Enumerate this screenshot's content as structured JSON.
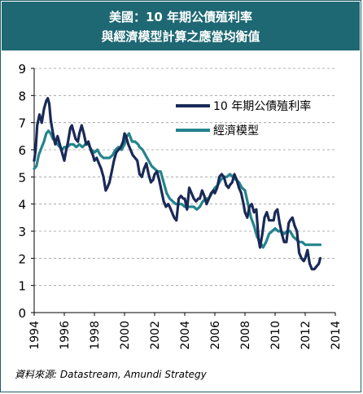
{
  "header": {
    "title_line1": "美國：10 年期公債殖利率",
    "title_line2": "與經濟模型計算之應當均衡值"
  },
  "source": "資料來源: Datastream, Amundi Strategy",
  "colors": {
    "banner": "#1e6873",
    "yield_series": "#1a2a57",
    "model_series": "#24838c",
    "grid": "#9a9a9a"
  },
  "chart_data": {
    "type": "line",
    "xlim": [
      1994,
      2014
    ],
    "ylim": [
      0,
      9
    ],
    "x_ticks": [
      "1994",
      "1996",
      "1998",
      "2000",
      "2002",
      "2004",
      "2006",
      "2008",
      "2010",
      "2012",
      "2014"
    ],
    "y_ticks": [
      "0",
      "1",
      "2",
      "3",
      "4",
      "5",
      "6",
      "7",
      "8",
      "9"
    ],
    "grid": "horizontal dashed",
    "legend_position": "top-right",
    "series": [
      {
        "name": "10 年期公債殖利率",
        "color": "#1a2a57",
        "x": [
          1994.0,
          1994.1,
          1994.2,
          1994.35,
          1994.5,
          1994.65,
          1994.8,
          1994.9,
          1995.0,
          1995.1,
          1995.25,
          1995.4,
          1995.55,
          1995.7,
          1995.85,
          1996.0,
          1996.1,
          1996.25,
          1996.4,
          1996.5,
          1996.6,
          1996.75,
          1996.9,
          1997.0,
          1997.15,
          1997.3,
          1997.45,
          1997.6,
          1997.75,
          1997.9,
          1998.0,
          1998.15,
          1998.3,
          1998.45,
          1998.6,
          1998.75,
          1998.85,
          1999.0,
          1999.15,
          1999.3,
          1999.45,
          1999.6,
          1999.75,
          1999.9,
          2000.0,
          2000.1,
          2000.25,
          2000.4,
          2000.55,
          2000.7,
          2000.85,
          2001.0,
          2001.15,
          2001.3,
          2001.45,
          2001.6,
          2001.75,
          2001.9,
          2002.0,
          2002.15,
          2002.3,
          2002.45,
          2002.6,
          2002.75,
          2002.9,
          2003.0,
          2003.15,
          2003.3,
          2003.45,
          2003.6,
          2003.75,
          2003.9,
          2004.0,
          2004.15,
          2004.3,
          2004.45,
          2004.6,
          2004.75,
          2004.9,
          2005.0,
          2005.15,
          2005.3,
          2005.45,
          2005.6,
          2005.75,
          2005.9,
          2006.0,
          2006.15,
          2006.3,
          2006.45,
          2006.6,
          2006.75,
          2006.9,
          2007.0,
          2007.15,
          2007.3,
          2007.45,
          2007.6,
          2007.75,
          2007.9,
          2008.0,
          2008.15,
          2008.3,
          2008.45,
          2008.6,
          2008.75,
          2008.9,
          2009.0,
          2009.15,
          2009.3,
          2009.45,
          2009.6,
          2009.75,
          2009.9,
          2010.0,
          2010.15,
          2010.3,
          2010.45,
          2010.6,
          2010.75,
          2010.9,
          2011.0,
          2011.15,
          2011.3,
          2011.45,
          2011.6,
          2011.75,
          2011.9,
          2012.0,
          2012.15,
          2012.3,
          2012.45,
          2012.6,
          2012.75,
          2012.9,
          2013.0
        ],
        "values": [
          5.6,
          6.0,
          6.9,
          7.3,
          7.0,
          7.5,
          7.8,
          7.9,
          7.7,
          7.1,
          6.6,
          6.2,
          6.5,
          6.2,
          5.9,
          5.6,
          5.9,
          6.3,
          6.8,
          6.9,
          6.7,
          6.4,
          6.3,
          6.6,
          6.9,
          6.6,
          6.2,
          6.3,
          6.0,
          5.8,
          5.6,
          5.7,
          5.5,
          5.3,
          5.0,
          4.5,
          4.6,
          4.8,
          5.2,
          5.6,
          5.9,
          6.0,
          6.1,
          6.3,
          6.6,
          6.5,
          6.2,
          6.0,
          5.8,
          5.7,
          5.6,
          5.1,
          5.0,
          5.3,
          5.5,
          5.1,
          4.8,
          4.9,
          5.1,
          5.2,
          4.9,
          4.5,
          4.1,
          3.9,
          4.0,
          3.9,
          3.7,
          3.5,
          3.4,
          4.2,
          4.3,
          4.2,
          4.2,
          3.8,
          4.6,
          4.4,
          4.2,
          4.1,
          4.2,
          4.2,
          4.5,
          4.3,
          4.0,
          4.2,
          4.4,
          4.5,
          4.4,
          4.6,
          5.0,
          5.1,
          5.0,
          4.7,
          4.6,
          4.7,
          4.8,
          5.1,
          4.9,
          4.6,
          4.4,
          4.0,
          3.7,
          3.5,
          3.9,
          4.0,
          3.7,
          3.8,
          2.7,
          2.4,
          2.9,
          3.5,
          3.7,
          3.4,
          3.4,
          3.4,
          3.7,
          3.8,
          3.3,
          2.9,
          2.6,
          2.6,
          3.3,
          3.4,
          3.5,
          3.2,
          3.0,
          2.2,
          2.0,
          1.9,
          2.0,
          2.3,
          1.8,
          1.6,
          1.6,
          1.7,
          1.8,
          2.0
        ]
      },
      {
        "name": "經濟模型",
        "color": "#24838c",
        "x": [
          1994.0,
          1994.15,
          1994.3,
          1994.5,
          1994.65,
          1994.8,
          1994.95,
          1995.1,
          1995.25,
          1995.4,
          1995.55,
          1995.7,
          1995.85,
          1996.0,
          1996.2,
          1996.4,
          1996.6,
          1996.8,
          1997.0,
          1997.2,
          1997.4,
          1997.6,
          1997.8,
          1998.0,
          1998.2,
          1998.4,
          1998.6,
          1998.8,
          1999.0,
          1999.2,
          1999.4,
          1999.6,
          1999.8,
          2000.0,
          2000.15,
          2000.3,
          2000.5,
          2000.7,
          2000.9,
          2001.0,
          2001.2,
          2001.4,
          2001.6,
          2001.8,
          2002.0,
          2002.2,
          2002.4,
          2002.6,
          2002.8,
          2003.0,
          2003.2,
          2003.4,
          2003.6,
          2003.8,
          2004.0,
          2004.2,
          2004.4,
          2004.6,
          2004.8,
          2005.0,
          2005.2,
          2005.4,
          2005.6,
          2005.8,
          2006.0,
          2006.2,
          2006.4,
          2006.6,
          2006.8,
          2007.0,
          2007.2,
          2007.4,
          2007.6,
          2007.8,
          2008.0,
          2008.2,
          2008.4,
          2008.6,
          2008.8,
          2009.0,
          2009.2,
          2009.4,
          2009.6,
          2009.8,
          2010.0,
          2010.2,
          2010.4,
          2010.6,
          2010.8,
          2011.0,
          2011.2,
          2011.4,
          2011.6,
          2011.8,
          2012.0,
          2012.2,
          2012.4,
          2012.6,
          2012.8,
          2013.0
        ],
        "values": [
          5.3,
          5.4,
          5.8,
          6.1,
          6.3,
          6.6,
          6.7,
          6.6,
          6.4,
          6.3,
          6.2,
          6.1,
          6.0,
          6.1,
          6.1,
          6.2,
          6.2,
          6.1,
          6.2,
          6.1,
          6.2,
          6.2,
          6.0,
          5.9,
          6.0,
          5.8,
          5.7,
          5.7,
          5.7,
          5.8,
          6.0,
          6.1,
          6.0,
          6.2,
          6.5,
          6.6,
          6.3,
          6.3,
          6.2,
          6.1,
          6.0,
          5.8,
          5.6,
          5.4,
          5.3,
          5.2,
          5.2,
          4.8,
          4.4,
          4.2,
          4.1,
          4.0,
          4.0,
          4.0,
          3.9,
          3.9,
          3.9,
          3.9,
          3.8,
          3.9,
          4.1,
          4.2,
          4.2,
          4.4,
          4.6,
          4.7,
          4.9,
          5.0,
          5.0,
          5.1,
          5.0,
          4.9,
          4.8,
          4.6,
          4.5,
          4.0,
          3.5,
          3.2,
          2.8,
          2.6,
          2.4,
          2.6,
          2.9,
          3.0,
          3.1,
          3.0,
          3.0,
          2.9,
          3.0,
          3.0,
          2.8,
          2.7,
          2.6,
          2.6,
          2.5,
          2.5,
          2.5,
          2.5,
          2.5,
          2.5
        ]
      }
    ]
  }
}
